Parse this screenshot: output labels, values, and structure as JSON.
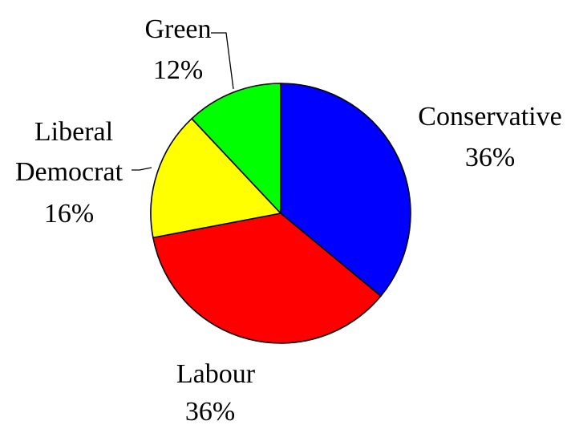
{
  "chart_data": {
    "type": "pie",
    "slices": [
      {
        "label": "Conservative",
        "value": 36,
        "display": "36%",
        "color": "#0000ff"
      },
      {
        "label": "Labour",
        "value": 36,
        "display": "36%",
        "color": "#ff0000"
      },
      {
        "label": "Liberal Democrat",
        "label_lines": [
          "Liberal",
          "Democrat"
        ],
        "value": 16,
        "display": "16%",
        "color": "#ffff00"
      },
      {
        "label": "Green",
        "value": 12,
        "display": "12%",
        "color": "#00ff00"
      }
    ],
    "start_angle_deg": 0,
    "direction": "clockwise",
    "legend": "none",
    "data_labels": "category-and-percent"
  }
}
